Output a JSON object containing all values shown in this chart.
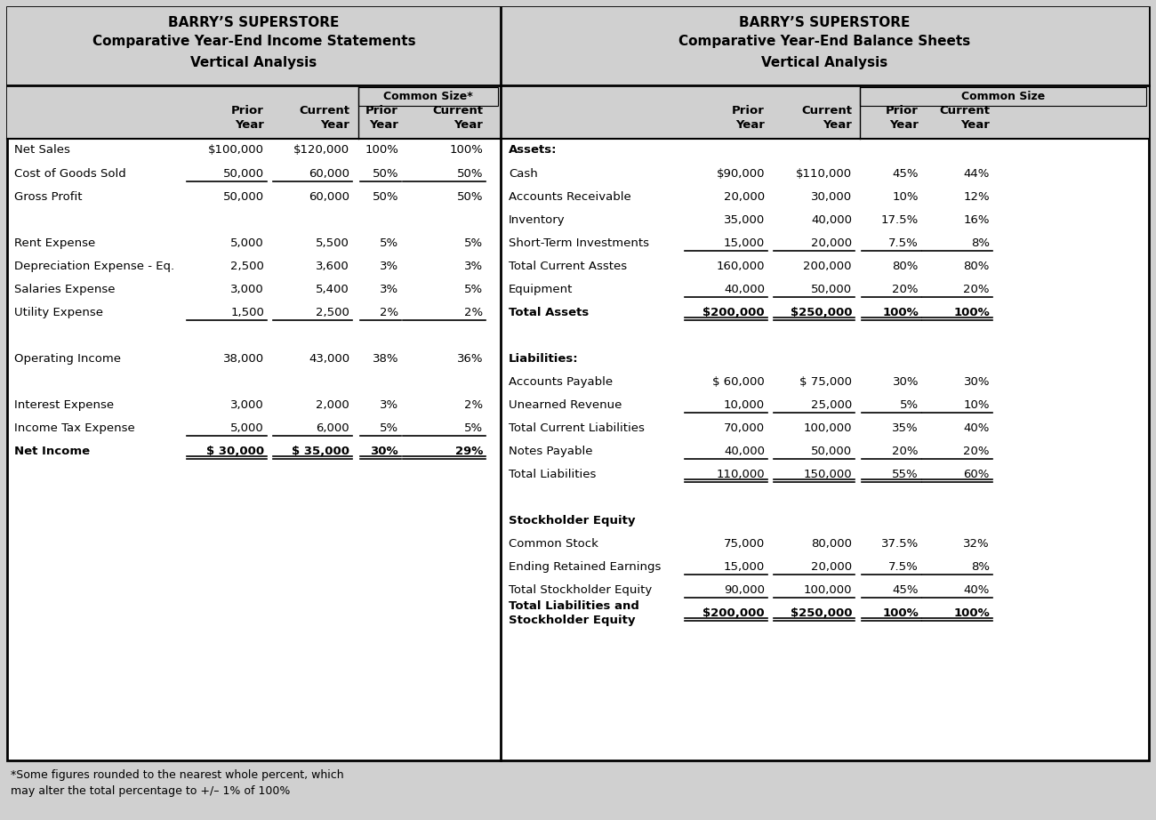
{
  "bg_color": "#d0d0d0",
  "header_bg": "#d0d0d0",
  "white": "#ffffff",
  "black": "#000000",
  "left_title1": "BARRY’S SUPERSTORE",
  "left_title2": "Comparative Year-End Income Statements",
  "left_title3": "Vertical Analysis",
  "right_title1": "BARRY’S SUPERSTORE",
  "right_title2": "Comparative Year-End Balance Sheets",
  "right_title3": "Vertical Analysis",
  "common_size_label_left": "Common Size*",
  "common_size_label_right": "Common Size",
  "income_rows": [
    {
      "label": "Net Sales",
      "prior": "$100,000",
      "current": "$120,000",
      "cs_prior": "100%",
      "cs_curr": "100%",
      "bold": false,
      "ul": false,
      "dul": false
    },
    {
      "label": "Cost of Goods Sold",
      "prior": "50,000",
      "current": "60,000",
      "cs_prior": "50%",
      "cs_curr": "50%",
      "bold": false,
      "ul": true,
      "dul": false
    },
    {
      "label": "Gross Profit",
      "prior": "50,000",
      "current": "60,000",
      "cs_prior": "50%",
      "cs_curr": "50%",
      "bold": false,
      "ul": false,
      "dul": false
    },
    {
      "label": "",
      "prior": "",
      "current": "",
      "cs_prior": "",
      "cs_curr": "",
      "bold": false,
      "ul": false,
      "dul": false
    },
    {
      "label": "Rent Expense",
      "prior": "5,000",
      "current": "5,500",
      "cs_prior": "5%",
      "cs_curr": "5%",
      "bold": false,
      "ul": false,
      "dul": false
    },
    {
      "label": "Depreciation Expense - Eq.",
      "prior": "2,500",
      "current": "3,600",
      "cs_prior": "3%",
      "cs_curr": "3%",
      "bold": false,
      "ul": false,
      "dul": false
    },
    {
      "label": "Salaries Expense",
      "prior": "3,000",
      "current": "5,400",
      "cs_prior": "3%",
      "cs_curr": "5%",
      "bold": false,
      "ul": false,
      "dul": false
    },
    {
      "label": "Utility Expense",
      "prior": "1,500",
      "current": "2,500",
      "cs_prior": "2%",
      "cs_curr": "2%",
      "bold": false,
      "ul": true,
      "dul": false
    },
    {
      "label": "",
      "prior": "",
      "current": "",
      "cs_prior": "",
      "cs_curr": "",
      "bold": false,
      "ul": false,
      "dul": false
    },
    {
      "label": "Operating Income",
      "prior": "38,000",
      "current": "43,000",
      "cs_prior": "38%",
      "cs_curr": "36%",
      "bold": false,
      "ul": false,
      "dul": false
    },
    {
      "label": "",
      "prior": "",
      "current": "",
      "cs_prior": "",
      "cs_curr": "",
      "bold": false,
      "ul": false,
      "dul": false
    },
    {
      "label": "Interest Expense",
      "prior": "3,000",
      "current": "2,000",
      "cs_prior": "3%",
      "cs_curr": "2%",
      "bold": false,
      "ul": false,
      "dul": false
    },
    {
      "label": "Income Tax Expense",
      "prior": "5,000",
      "current": "6,000",
      "cs_prior": "5%",
      "cs_curr": "5%",
      "bold": false,
      "ul": true,
      "dul": false
    },
    {
      "label": "Net Income",
      "prior": "$ 30,000",
      "current": "$ 35,000",
      "cs_prior": "30%",
      "cs_curr": "29%",
      "bold": true,
      "ul": true,
      "dul": true
    }
  ],
  "balance_rows": [
    {
      "label": "Assets:",
      "prior": "",
      "current": "",
      "cs_prior": "",
      "cs_curr": "",
      "bold": true,
      "ul": false,
      "dul": false
    },
    {
      "label": "Cash",
      "prior": "$90,000",
      "current": "$110,000",
      "cs_prior": "45%",
      "cs_curr": "44%",
      "bold": false,
      "ul": false,
      "dul": false
    },
    {
      "label": "Accounts Receivable",
      "prior": "20,000",
      "current": "30,000",
      "cs_prior": "10%",
      "cs_curr": "12%",
      "bold": false,
      "ul": false,
      "dul": false
    },
    {
      "label": "Inventory",
      "prior": "35,000",
      "current": "40,000",
      "cs_prior": "17.5%",
      "cs_curr": "16%",
      "bold": false,
      "ul": false,
      "dul": false
    },
    {
      "label": "Short-Term Investments",
      "prior": "15,000",
      "current": "20,000",
      "cs_prior": "7.5%",
      "cs_curr": "8%",
      "bold": false,
      "ul": true,
      "dul": false
    },
    {
      "label": "Total Current Asstes",
      "prior": "160,000",
      "current": "200,000",
      "cs_prior": "80%",
      "cs_curr": "80%",
      "bold": false,
      "ul": false,
      "dul": false
    },
    {
      "label": "Equipment",
      "prior": "40,000",
      "current": "50,000",
      "cs_prior": "20%",
      "cs_curr": "20%",
      "bold": false,
      "ul": true,
      "dul": false
    },
    {
      "label": "Total Assets",
      "prior": "$200,000",
      "current": "$250,000",
      "cs_prior": "100%",
      "cs_curr": "100%",
      "bold": true,
      "ul": true,
      "dul": true
    },
    {
      "label": "",
      "prior": "",
      "current": "",
      "cs_prior": "",
      "cs_curr": "",
      "bold": false,
      "ul": false,
      "dul": false
    },
    {
      "label": "Liabilities:",
      "prior": "",
      "current": "",
      "cs_prior": "",
      "cs_curr": "",
      "bold": true,
      "ul": false,
      "dul": false
    },
    {
      "label": "Accounts Payable",
      "prior": "$ 60,000",
      "current": "$ 75,000",
      "cs_prior": "30%",
      "cs_curr": "30%",
      "bold": false,
      "ul": false,
      "dul": false
    },
    {
      "label": "Unearned Revenue",
      "prior": "10,000",
      "current": "25,000",
      "cs_prior": "5%",
      "cs_curr": "10%",
      "bold": false,
      "ul": true,
      "dul": false
    },
    {
      "label": "Total Current Liabilities",
      "prior": "70,000",
      "current": "100,000",
      "cs_prior": "35%",
      "cs_curr": "40%",
      "bold": false,
      "ul": false,
      "dul": false
    },
    {
      "label": "Notes Payable",
      "prior": "40,000",
      "current": "50,000",
      "cs_prior": "20%",
      "cs_curr": "20%",
      "bold": false,
      "ul": true,
      "dul": false
    },
    {
      "label": "Total Liabilities",
      "prior": "110,000",
      "current": "150,000",
      "cs_prior": "55%",
      "cs_curr": "60%",
      "bold": false,
      "ul": true,
      "dul": true
    },
    {
      "label": "",
      "prior": "",
      "current": "",
      "cs_prior": "",
      "cs_curr": "",
      "bold": false,
      "ul": false,
      "dul": false
    },
    {
      "label": "Stockholder Equity",
      "prior": "",
      "current": "",
      "cs_prior": "",
      "cs_curr": "",
      "bold": true,
      "ul": false,
      "dul": false
    },
    {
      "label": "Common Stock",
      "prior": "75,000",
      "current": "80,000",
      "cs_prior": "37.5%",
      "cs_curr": "32%",
      "bold": false,
      "ul": false,
      "dul": false
    },
    {
      "label": "Ending Retained Earnings",
      "prior": "15,000",
      "current": "20,000",
      "cs_prior": "7.5%",
      "cs_curr": "8%",
      "bold": false,
      "ul": true,
      "dul": false
    },
    {
      "label": "Total Stockholder Equity",
      "prior": "90,000",
      "current": "100,000",
      "cs_prior": "45%",
      "cs_curr": "40%",
      "bold": false,
      "ul": true,
      "dul": false
    },
    {
      "label": "Total Liabilities and\nStockholder Equity",
      "prior": "$200,000",
      "current": "$250,000",
      "cs_prior": "100%",
      "cs_curr": "100%",
      "bold": true,
      "ul": true,
      "dul": true
    }
  ],
  "footnote": "*Some figures rounded to the nearest whole percent, which\nmay alter the total percentage to +/– 1% of 100%"
}
